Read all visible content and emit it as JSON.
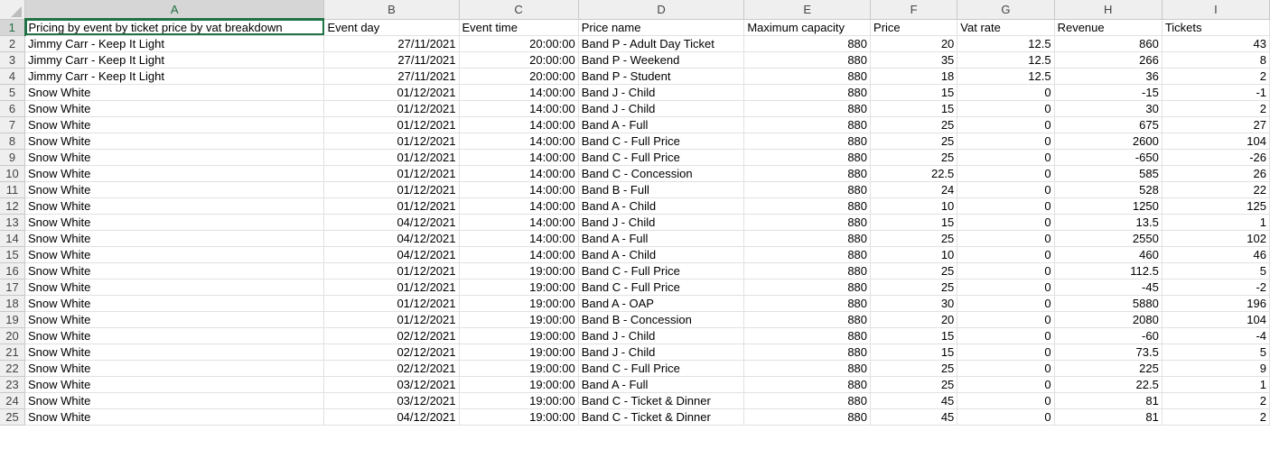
{
  "columns": [
    "A",
    "B",
    "C",
    "D",
    "E",
    "F",
    "G",
    "H",
    "I"
  ],
  "headers": [
    "Pricing by event by ticket price by vat breakdown",
    "Event day",
    "Event time",
    "Price name",
    "Maximum capacity",
    "Price",
    "Vat rate",
    "Revenue",
    "Tickets"
  ],
  "rows": [
    [
      "Jimmy Carr - Keep It Light",
      "27/11/2021",
      "20:00:00",
      "Band P - Adult Day Ticket",
      "880",
      "20",
      "12.5",
      "860",
      "43"
    ],
    [
      "Jimmy Carr - Keep It Light",
      "27/11/2021",
      "20:00:00",
      "Band P - Weekend",
      "880",
      "35",
      "12.5",
      "266",
      "8"
    ],
    [
      "Jimmy Carr - Keep It Light",
      "27/11/2021",
      "20:00:00",
      "Band P - Student",
      "880",
      "18",
      "12.5",
      "36",
      "2"
    ],
    [
      "Snow White",
      "01/12/2021",
      "14:00:00",
      "Band J - Child",
      "880",
      "15",
      "0",
      "-15",
      "-1"
    ],
    [
      "Snow White",
      "01/12/2021",
      "14:00:00",
      "Band J - Child",
      "880",
      "15",
      "0",
      "30",
      "2"
    ],
    [
      "Snow White",
      "01/12/2021",
      "14:00:00",
      "Band A - Full",
      "880",
      "25",
      "0",
      "675",
      "27"
    ],
    [
      "Snow White",
      "01/12/2021",
      "14:00:00",
      "Band C - Full Price",
      "880",
      "25",
      "0",
      "2600",
      "104"
    ],
    [
      "Snow White",
      "01/12/2021",
      "14:00:00",
      "Band C - Full Price",
      "880",
      "25",
      "0",
      "-650",
      "-26"
    ],
    [
      "Snow White",
      "01/12/2021",
      "14:00:00",
      "Band C - Concession",
      "880",
      "22.5",
      "0",
      "585",
      "26"
    ],
    [
      "Snow White",
      "01/12/2021",
      "14:00:00",
      "Band B - Full",
      "880",
      "24",
      "0",
      "528",
      "22"
    ],
    [
      "Snow White",
      "01/12/2021",
      "14:00:00",
      "Band A - Child",
      "880",
      "10",
      "0",
      "1250",
      "125"
    ],
    [
      "Snow White",
      "04/12/2021",
      "14:00:00",
      "Band J - Child",
      "880",
      "15",
      "0",
      "13.5",
      "1"
    ],
    [
      "Snow White",
      "04/12/2021",
      "14:00:00",
      "Band A - Full",
      "880",
      "25",
      "0",
      "2550",
      "102"
    ],
    [
      "Snow White",
      "04/12/2021",
      "14:00:00",
      "Band A - Child",
      "880",
      "10",
      "0",
      "460",
      "46"
    ],
    [
      "Snow White",
      "01/12/2021",
      "19:00:00",
      "Band C - Full Price",
      "880",
      "25",
      "0",
      "112.5",
      "5"
    ],
    [
      "Snow White",
      "01/12/2021",
      "19:00:00",
      "Band C - Full Price",
      "880",
      "25",
      "0",
      "-45",
      "-2"
    ],
    [
      "Snow White",
      "01/12/2021",
      "19:00:00",
      "Band A - OAP",
      "880",
      "30",
      "0",
      "5880",
      "196"
    ],
    [
      "Snow White",
      "01/12/2021",
      "19:00:00",
      "Band B - Concession",
      "880",
      "20",
      "0",
      "2080",
      "104"
    ],
    [
      "Snow White",
      "02/12/2021",
      "19:00:00",
      "Band J - Child",
      "880",
      "15",
      "0",
      "-60",
      "-4"
    ],
    [
      "Snow White",
      "02/12/2021",
      "19:00:00",
      "Band J - Child",
      "880",
      "15",
      "0",
      "73.5",
      "5"
    ],
    [
      "Snow White",
      "02/12/2021",
      "19:00:00",
      "Band C - Full Price",
      "880",
      "25",
      "0",
      "225",
      "9"
    ],
    [
      "Snow White",
      "03/12/2021",
      "19:00:00",
      "Band A - Full",
      "880",
      "25",
      "0",
      "22.5",
      "1"
    ],
    [
      "Snow White",
      "03/12/2021",
      "19:00:00",
      "Band C - Ticket & Dinner",
      "880",
      "45",
      "0",
      "81",
      "2"
    ],
    [
      "Snow White",
      "04/12/2021",
      "19:00:00",
      "Band C - Ticket & Dinner",
      "880",
      "45",
      "0",
      "81",
      "2"
    ]
  ],
  "selected_cell": "A1",
  "accent_color": "#217346"
}
